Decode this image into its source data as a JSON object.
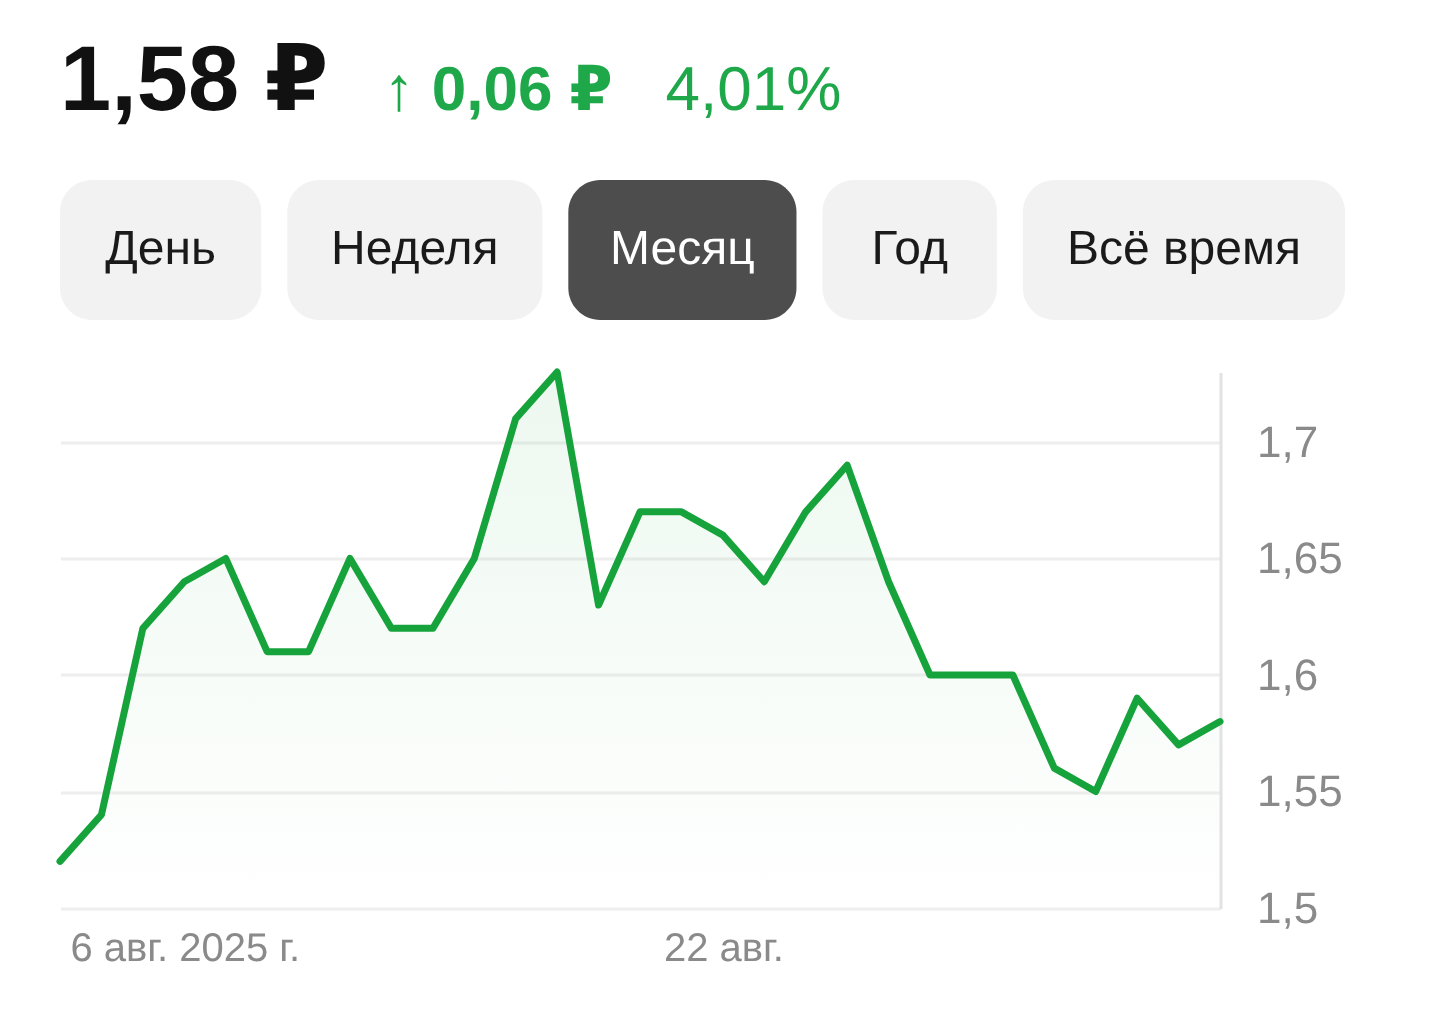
{
  "chart_data": {
    "type": "area",
    "title": "1,58 ₽",
    "annotations": [
      "↑ 0,06 ₽",
      "4,01%",
      "День",
      "Неделя",
      "Месяц",
      "Год",
      "Всё время"
    ],
    "categories": [
      null,
      null,
      null,
      "6 авг. 2025 г.",
      null,
      null,
      null,
      null,
      null,
      null,
      null,
      null,
      null,
      null,
      null,
      null,
      "22 авг.",
      null,
      null,
      null,
      null,
      null,
      null,
      null,
      null,
      null,
      null,
      null,
      null
    ],
    "series": [
      {
        "color": "#17a33b",
        "values": [
          1.52,
          1.54,
          1.62,
          1.64,
          1.65,
          1.61,
          1.61,
          1.65,
          1.62,
          1.62,
          1.65,
          1.71,
          1.73,
          1.63,
          1.67,
          1.67,
          1.66,
          1.64,
          1.67,
          1.69,
          1.64,
          1.6,
          1.6,
          1.6,
          1.56,
          1.55,
          1.59,
          1.57,
          1.58
        ]
      }
    ],
    "ylim": [
      1.5,
      1.73
    ],
    "yticks": [
      {
        "value": 1.5,
        "label": "1,5"
      },
      {
        "value": 1.55,
        "label": "1,55"
      },
      {
        "value": 1.6,
        "label": "1,6"
      },
      {
        "value": 1.65,
        "label": "1,65"
      },
      {
        "value": 1.7,
        "label": "1,7"
      }
    ],
    "grid": "y"
  }
}
